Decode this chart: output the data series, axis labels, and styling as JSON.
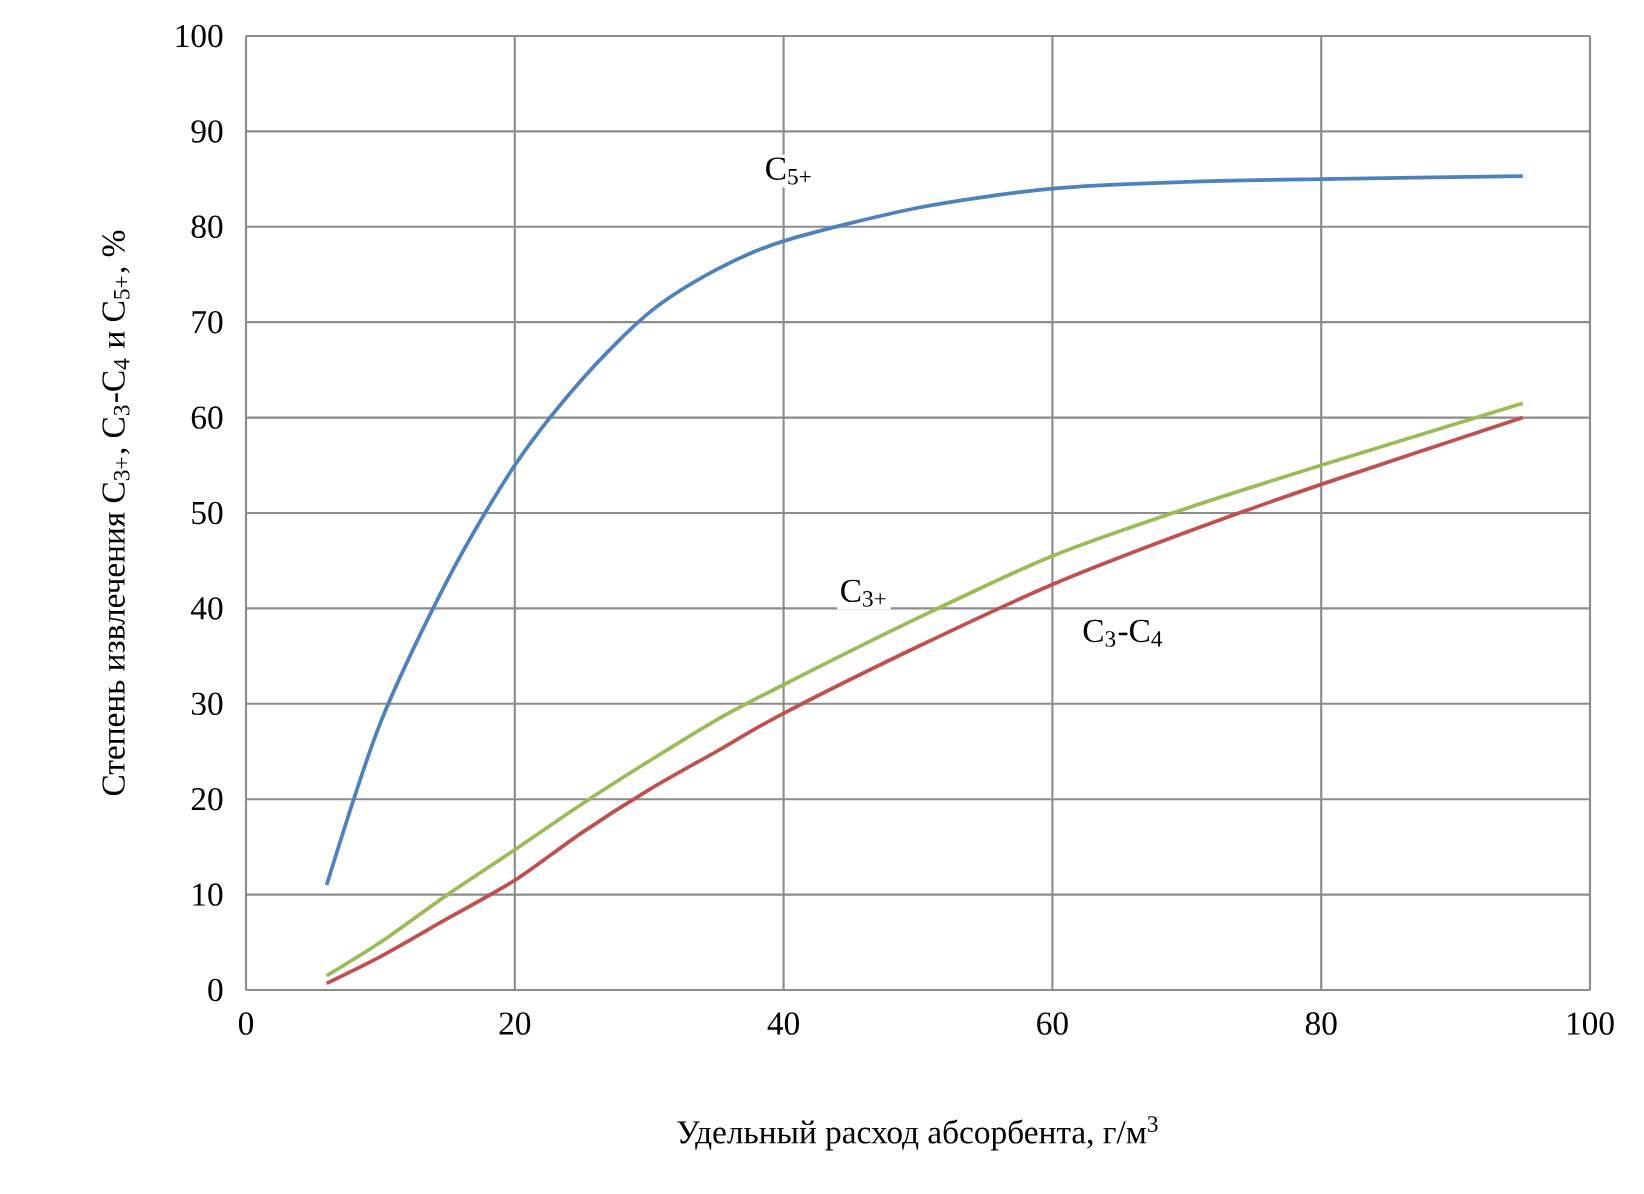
{
  "chart_data": {
    "type": "line",
    "xlabel": "Удельный расход абсорбента, г/м$^{3}$",
    "ylabel": "Степень извлечения C$_{3+}$, C$_{3}$-C$_{4}$ и C$_{5+}$, %",
    "x": [
      6,
      10,
      15,
      20,
      25,
      30,
      35,
      40,
      50,
      60,
      70,
      80,
      95
    ],
    "series": [
      {
        "name": "C$_{5+}$",
        "color": "#4f81bd",
        "values": [
          11,
          28,
          43,
          55,
          64,
          71,
          75.5,
          78.5,
          82,
          84,
          84.7,
          85,
          85.3
        ]
      },
      {
        "name": "C$_{3+}$",
        "color": "#9bbb59",
        "values": [
          1.5,
          5,
          10,
          14.7,
          19.5,
          24,
          28.3,
          32,
          39,
          45.5,
          50.5,
          55,
          61.5
        ]
      },
      {
        "name": "C$_{3}$-C$_{4}$",
        "color": "#c0504d",
        "values": [
          0.7,
          3.5,
          7.5,
          11.5,
          16.5,
          21,
          25,
          29,
          36,
          42.5,
          48,
          53,
          60
        ]
      }
    ],
    "xlim": [
      0,
      100
    ],
    "ylim": [
      0,
      100
    ],
    "xticks": [
      0,
      20,
      40,
      60,
      80,
      100
    ],
    "yticks": [
      0,
      10,
      20,
      30,
      40,
      50,
      60,
      70,
      80,
      90,
      100
    ],
    "grid": true,
    "marker": "none",
    "line_style": "solid"
  }
}
